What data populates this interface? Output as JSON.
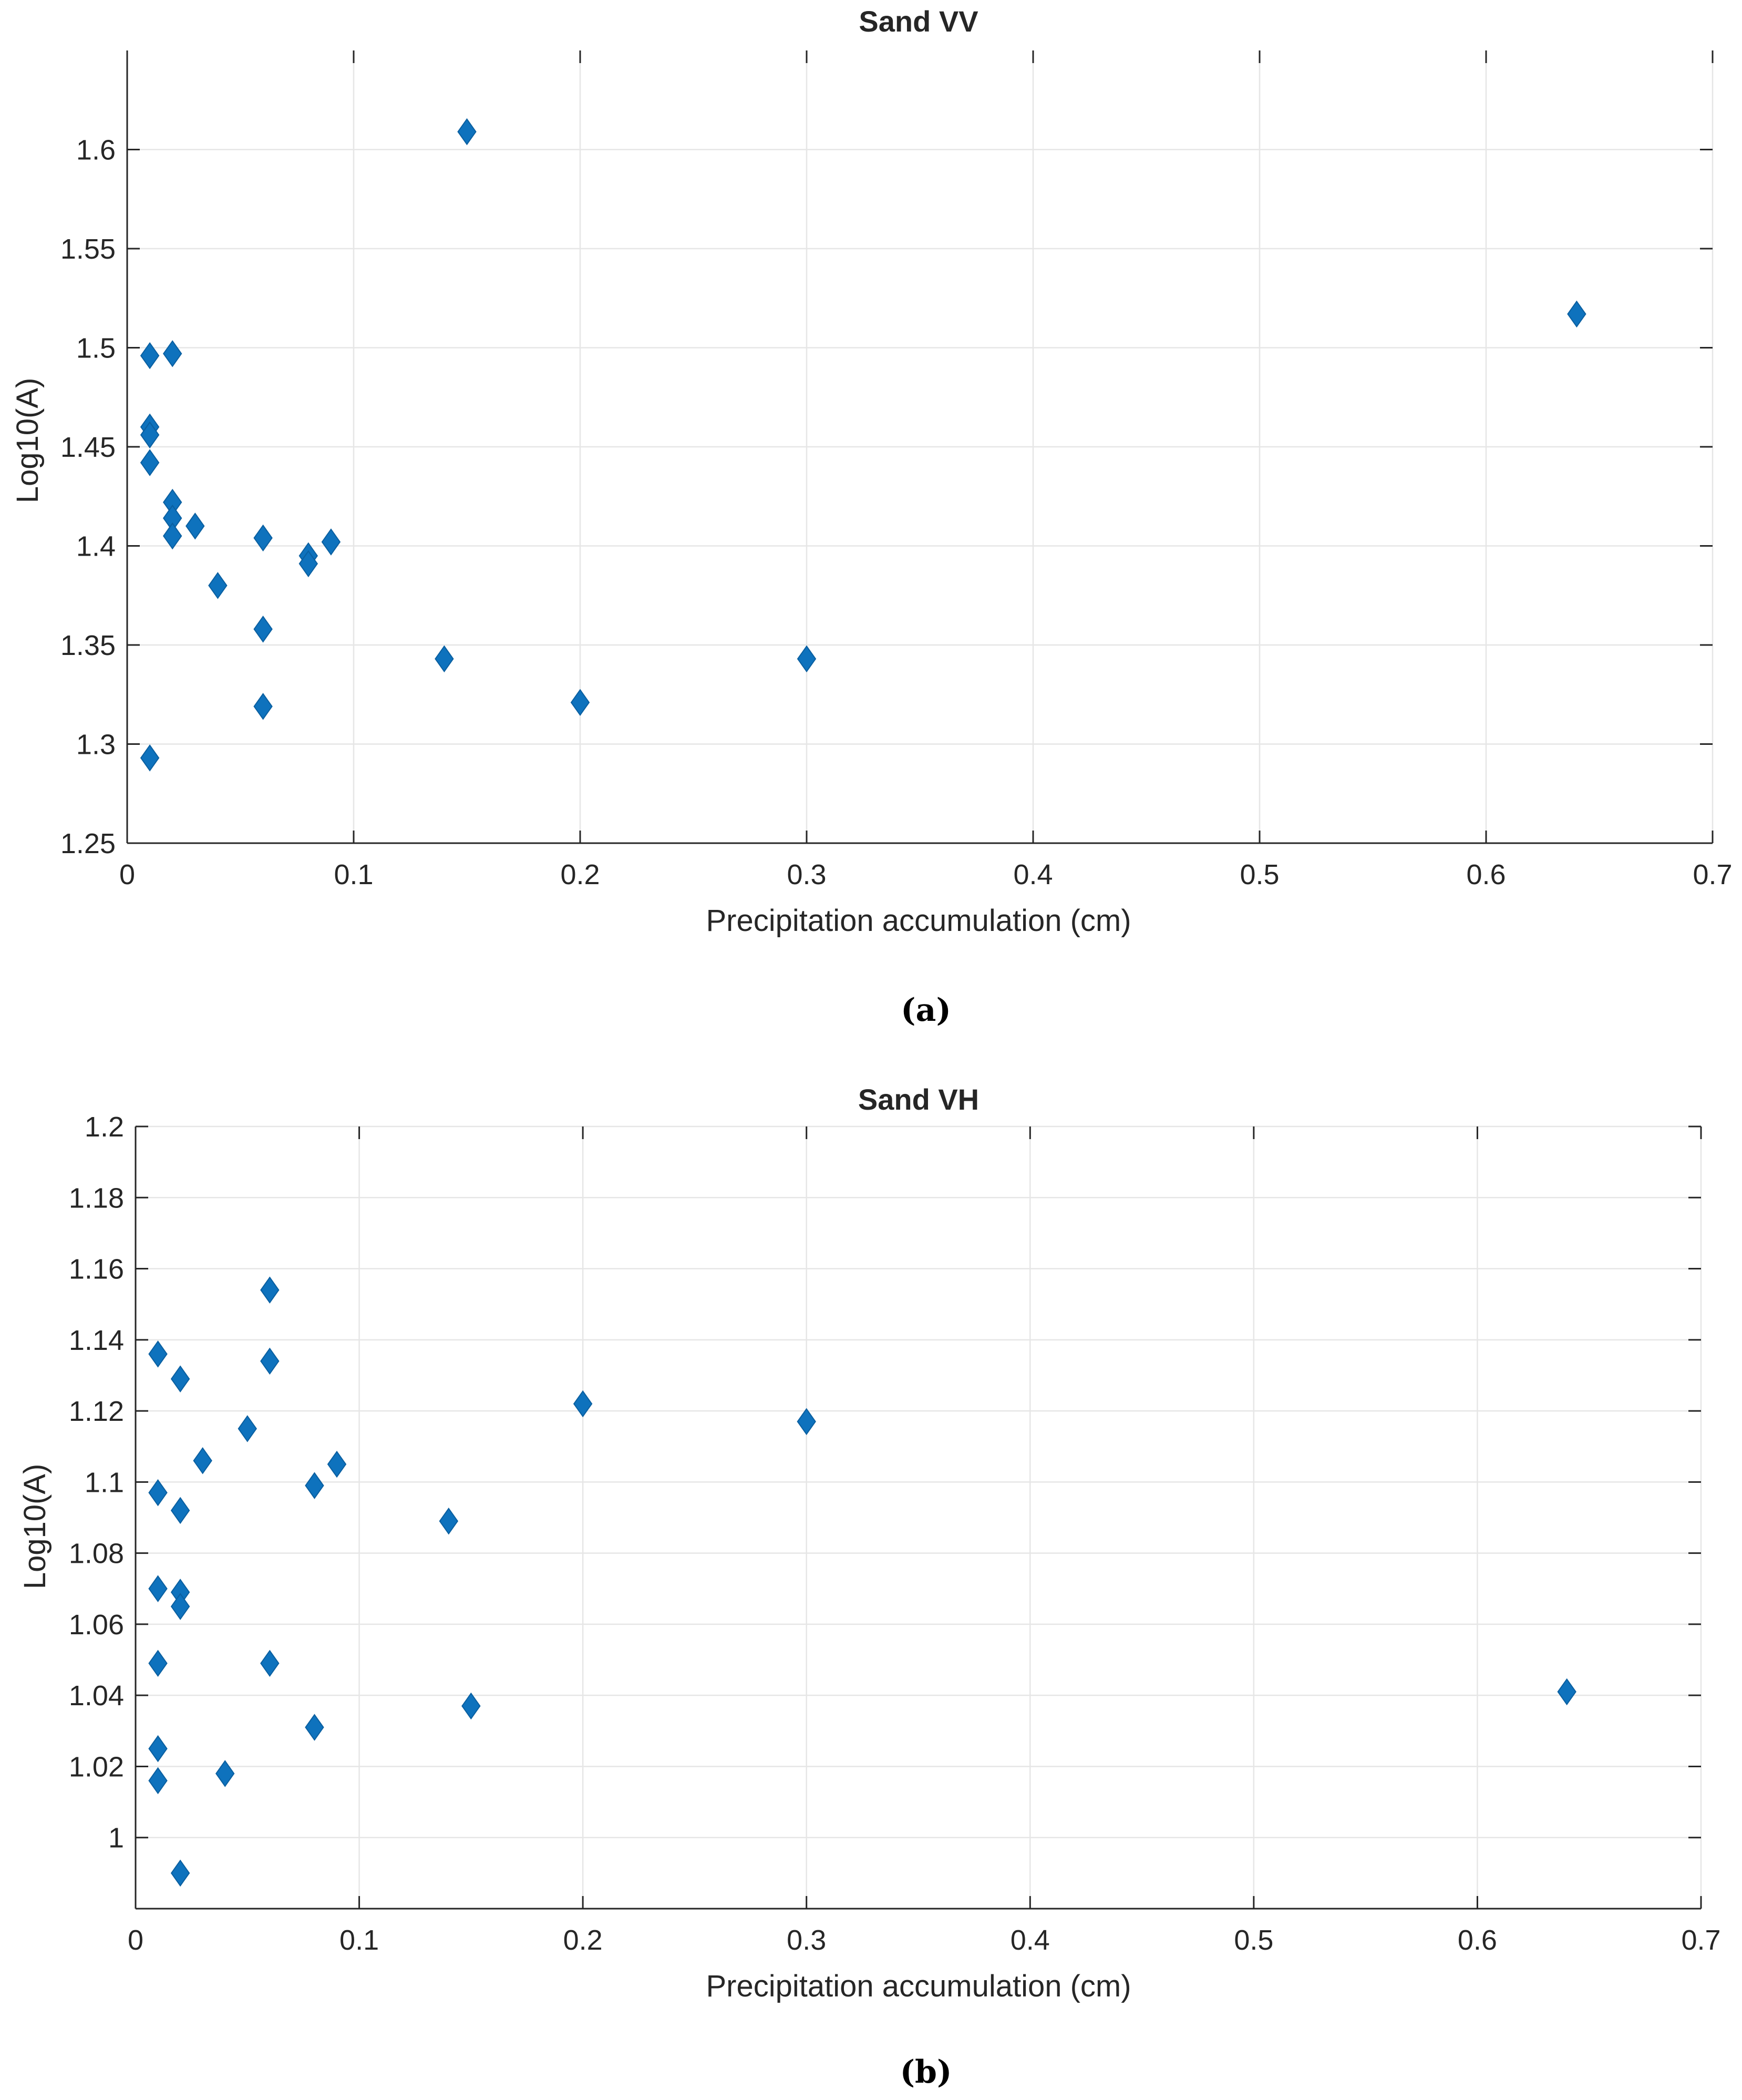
{
  "chart_data": [
    {
      "type": "scatter",
      "title": "Sand VV",
      "xlabel": "Precipitation accumulation (cm)",
      "ylabel": "Log10(A)",
      "caption": "(a)",
      "xlim": [
        0,
        0.7
      ],
      "ylim": [
        1.25,
        1.65
      ],
      "xticks": [
        0,
        0.1,
        0.2,
        0.3,
        0.4,
        0.5,
        0.6,
        0.7
      ],
      "yticks": [
        1.25,
        1.3,
        1.35,
        1.4,
        1.45,
        1.5,
        1.55,
        1.6
      ],
      "xtick_labels": [
        "0",
        "0.1",
        "0.2",
        "0.3",
        "0.4",
        "0.5",
        "0.6",
        "0.7"
      ],
      "ytick_labels": [
        "1.25",
        "1.3",
        "1.35",
        "1.4",
        "1.45",
        "1.5",
        "1.55",
        "1.6"
      ],
      "grid": true,
      "marker": "diamond",
      "color": "#0E72BD",
      "x": [
        0.01,
        0.02,
        0.01,
        0.01,
        0.01,
        0.02,
        0.02,
        0.02,
        0.03,
        0.06,
        0.08,
        0.08,
        0.09,
        0.04,
        0.06,
        0.06,
        0.01,
        0.14,
        0.15,
        0.2,
        0.3,
        0.64
      ],
      "y": [
        1.496,
        1.497,
        1.46,
        1.456,
        1.442,
        1.422,
        1.414,
        1.405,
        1.41,
        1.404,
        1.395,
        1.391,
        1.402,
        1.38,
        1.358,
        1.319,
        1.293,
        1.343,
        1.609,
        1.321,
        1.343,
        1.517
      ]
    },
    {
      "type": "scatter",
      "title": "Sand VH",
      "xlabel": "Precipitation accumulation (cm)",
      "ylabel": "Log10(A)",
      "caption": "(b)",
      "xlim": [
        0,
        0.7
      ],
      "ylim": [
        0.98,
        1.2
      ],
      "xticks": [
        0,
        0.1,
        0.2,
        0.3,
        0.4,
        0.5,
        0.6,
        0.7
      ],
      "yticks": [
        1.0,
        1.02,
        1.04,
        1.06,
        1.08,
        1.1,
        1.12,
        1.14,
        1.16,
        1.18,
        1.2
      ],
      "xtick_labels": [
        "0",
        "0.1",
        "0.2",
        "0.3",
        "0.4",
        "0.5",
        "0.6",
        "0.7"
      ],
      "ytick_labels": [
        "1",
        "1.02",
        "1.04",
        "1.06",
        "1.08",
        "1.1",
        "1.12",
        "1.14",
        "1.16",
        "1.18",
        "1.2"
      ],
      "grid": true,
      "marker": "diamond",
      "color": "#0E72BD",
      "x": [
        0.01,
        0.01,
        0.01,
        0.01,
        0.01,
        0.01,
        0.02,
        0.02,
        0.02,
        0.02,
        0.02,
        0.03,
        0.04,
        0.05,
        0.06,
        0.06,
        0.06,
        0.08,
        0.08,
        0.09,
        0.14,
        0.15,
        0.2,
        0.3,
        0.64
      ],
      "y": [
        1.136,
        1.097,
        1.07,
        1.049,
        1.025,
        1.016,
        1.129,
        1.092,
        1.069,
        1.065,
        0.99,
        1.106,
        1.018,
        1.115,
        1.154,
        1.134,
        1.049,
        1.099,
        1.031,
        1.105,
        1.089,
        1.037,
        1.122,
        1.117,
        1.041
      ]
    }
  ]
}
